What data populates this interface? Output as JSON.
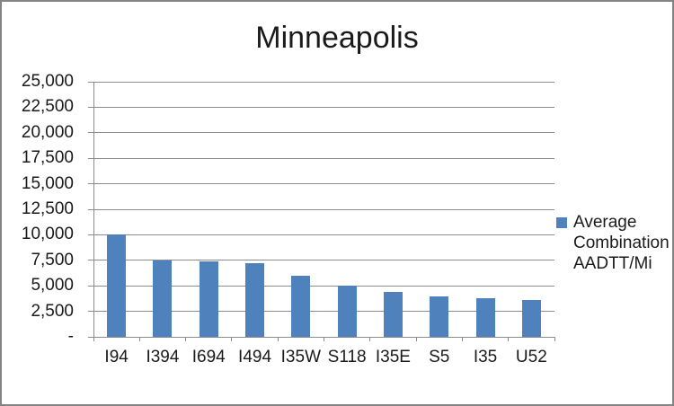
{
  "colors": {
    "bar": "#4F81BD",
    "gridline": "#8C8C8C",
    "axis": "#8C8C8C",
    "text": "#1A1A1A",
    "frame_border": "#848484",
    "background": "#FFFFFF"
  },
  "legend": {
    "lines": [
      "Average",
      "Combination",
      "AADTT/Mi"
    ],
    "swatch_color": "#4F81BD"
  },
  "chart_data": {
    "type": "bar",
    "title": "Minneapolis",
    "categories": [
      "I94",
      "I394",
      "I694",
      "I494",
      "I35W",
      "S118",
      "I35E",
      "S5",
      "I35",
      "U52"
    ],
    "values": [
      10000,
      7500,
      7400,
      7200,
      5950,
      5000,
      4400,
      4000,
      3800,
      3600
    ],
    "series": [
      {
        "name": "Average Combination AADTT/Mi",
        "values": [
          10000,
          7500,
          7400,
          7200,
          5950,
          5000,
          4400,
          4000,
          3800,
          3600
        ]
      }
    ],
    "xlabel": "",
    "ylabel": "",
    "ylim": [
      0,
      25000
    ],
    "ytick_step": 2500,
    "ytick_labels": [
      "-",
      "2,500",
      "5,000",
      "7,500",
      "10,000",
      "12,500",
      "15,000",
      "17,500",
      "20,000",
      "22,500",
      "25,000"
    ],
    "grid": "horizontal-only",
    "legend_position": "right"
  }
}
